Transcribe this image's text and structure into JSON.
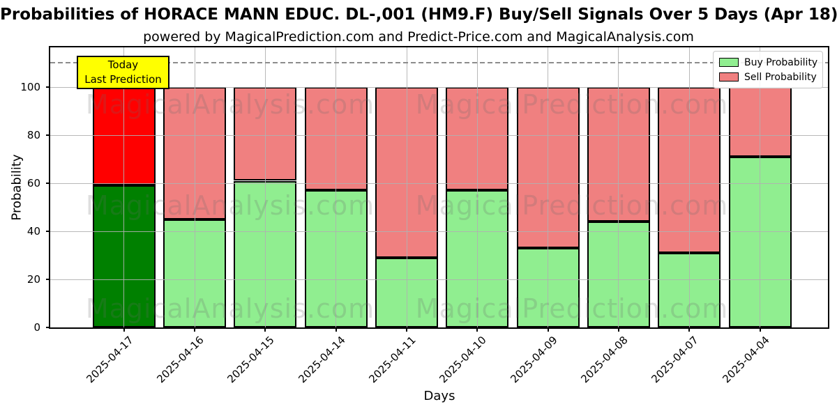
{
  "watermarks": {
    "left_text": "MagicalAnalysis.com",
    "right_text": "MagicalPrediction.com"
  },
  "annotation": {
    "lines": [
      "Today",
      "Last Prediction"
    ],
    "bg_color": "#ffff00"
  },
  "chart_data": {
    "type": "bar",
    "stacked": true,
    "title": "Probabilities of HORACE MANN EDUC. DL-,001 (HM9.F) Buy/Sell Signals Over 5 Days (Apr 18)",
    "subtitle": "powered by MagicalPrediction.com and Predict-Price.com and MagicalAnalysis.com",
    "xlabel": "Days",
    "ylabel": "Probability",
    "categories": [
      "2025-04-17",
      "2025-04-16",
      "2025-04-15",
      "2025-04-14",
      "2025-04-11",
      "2025-04-10",
      "2025-04-09",
      "2025-04-08",
      "2025-04-07",
      "2025-04-04"
    ],
    "series": [
      {
        "name": "Buy Probability",
        "values": [
          59,
          45,
          61,
          57,
          29,
          57,
          33,
          44,
          31,
          71
        ],
        "color": "#90EE90",
        "today_color": "#008000"
      },
      {
        "name": "Sell Probability",
        "values": [
          41,
          55,
          39,
          43,
          71,
          43,
          67,
          56,
          69,
          29
        ],
        "color": "#F08080",
        "today_color": "#FF0000"
      }
    ],
    "bar_total": 100,
    "yticks": [
      0,
      20,
      40,
      60,
      80,
      100
    ],
    "ylim": [
      0,
      116.5
    ],
    "dashed_hline_y": 110,
    "grid": true,
    "legend_position": "upper right",
    "bar_edge_color": "#000000"
  }
}
